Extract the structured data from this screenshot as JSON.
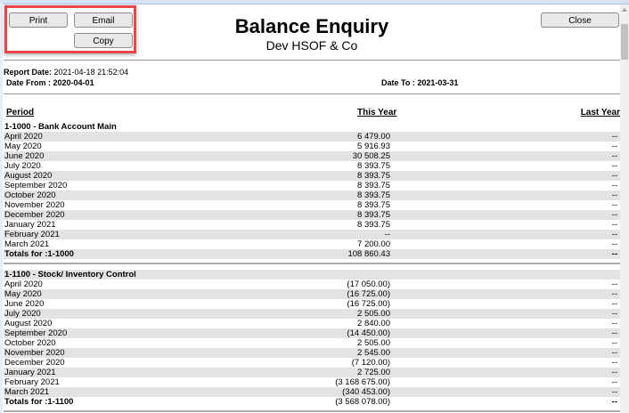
{
  "toolbar": {
    "print_label": "Print",
    "email_label": "Email",
    "copy_label": "Copy",
    "close_label": "Close",
    "highlight_color": "#e8464a"
  },
  "header": {
    "title": "Balance Enquiry",
    "company": "Dev HSOF & Co"
  },
  "meta": {
    "report_date_label": "Report Date:",
    "report_date": "2021-04-18 21:52:04",
    "date_from_label": "Date From :",
    "date_from": "2020-04-01",
    "date_to_label": "Date To :",
    "date_to": "2021-03-31"
  },
  "columns": {
    "period": "Period",
    "this_year": "This Year",
    "last_year": "Last Year"
  },
  "sections": [
    {
      "title": "1-1000 - Bank Account Main",
      "rows": [
        {
          "period": "April 2020",
          "this_year": "6 479.00",
          "last_year": "--"
        },
        {
          "period": "May 2020",
          "this_year": "5 916.93",
          "last_year": "--"
        },
        {
          "period": "June 2020",
          "this_year": "30 508.25",
          "last_year": "--"
        },
        {
          "period": "July 2020",
          "this_year": "8 393.75",
          "last_year": "--"
        },
        {
          "period": "August 2020",
          "this_year": "8 393.75",
          "last_year": "--"
        },
        {
          "period": "September 2020",
          "this_year": "8 393.75",
          "last_year": "--"
        },
        {
          "period": "October 2020",
          "this_year": "8 393.75",
          "last_year": "--"
        },
        {
          "period": "November 2020",
          "this_year": "8 393.75",
          "last_year": "--"
        },
        {
          "period": "December 2020",
          "this_year": "8 393.75",
          "last_year": "--"
        },
        {
          "period": "January 2021",
          "this_year": "8 393.75",
          "last_year": "--"
        },
        {
          "period": "February 2021",
          "this_year": "--",
          "last_year": "--"
        },
        {
          "period": "March 2021",
          "this_year": "7 200.00",
          "last_year": "--"
        }
      ],
      "total": {
        "label": "Totals for :1-1000",
        "this_year": "108 860.43",
        "last_year": "--"
      }
    },
    {
      "title": "1-1100 - Stock/ Inventory Control",
      "rows": [
        {
          "period": "April 2020",
          "this_year": "(17 050.00)",
          "last_year": "--"
        },
        {
          "period": "May 2020",
          "this_year": "(16 725.00)",
          "last_year": "--"
        },
        {
          "period": "June 2020",
          "this_year": "(16 725.00)",
          "last_year": "--"
        },
        {
          "period": "July 2020",
          "this_year": "2 505.00",
          "last_year": "--"
        },
        {
          "period": "August 2020",
          "this_year": "2 840.00",
          "last_year": "--"
        },
        {
          "period": "September 2020",
          "this_year": "(14 450.00)",
          "last_year": "--"
        },
        {
          "period": "October 2020",
          "this_year": "2 505.00",
          "last_year": "--"
        },
        {
          "period": "November 2020",
          "this_year": "2 545.00",
          "last_year": "--"
        },
        {
          "period": "December 2020",
          "this_year": "(7 120.00)",
          "last_year": "--"
        },
        {
          "period": "January 2021",
          "this_year": "2 725.00",
          "last_year": "--"
        },
        {
          "period": "February 2021",
          "this_year": "(3 168 675.00)",
          "last_year": "--"
        },
        {
          "period": "March 2021",
          "this_year": "(340 453.00)",
          "last_year": "--"
        }
      ],
      "total": {
        "label": "Totals for :1-1100",
        "this_year": "(3 568 078.00)",
        "last_year": "--"
      }
    }
  ]
}
